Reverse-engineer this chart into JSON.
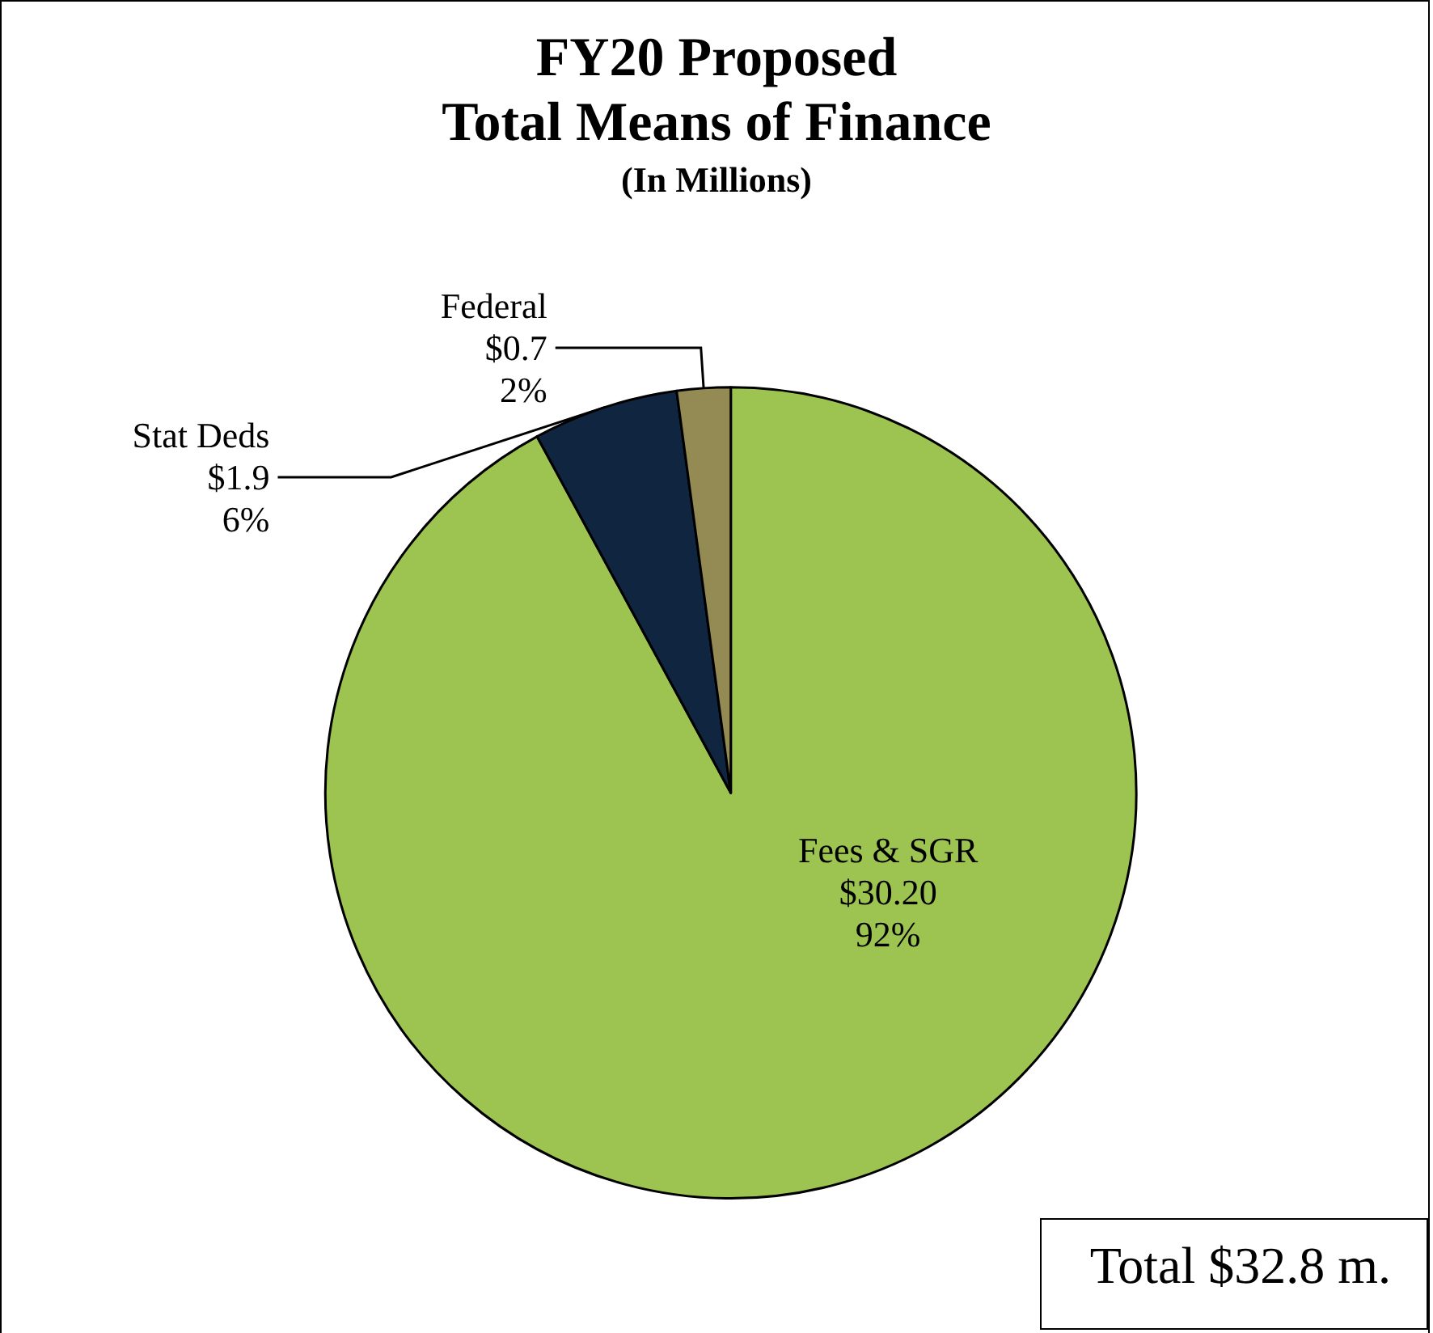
{
  "chart_data": {
    "type": "pie",
    "title": "FY20 Proposed\nTotal Means of Finance",
    "subtitle": "(In Millions)",
    "categories": [
      "Fees & SGR",
      "Stat Deds",
      "Federal"
    ],
    "values": [
      30.2,
      1.9,
      0.7
    ],
    "value_labels": [
      "$30.20\n92%",
      "$1.9\n6%",
      "$0.7\n2%"
    ],
    "colors": [
      "#9dc350",
      "#0f2540",
      "#948a54"
    ],
    "legend": false,
    "annotations": [
      "Total $32.8 m."
    ]
  }
}
